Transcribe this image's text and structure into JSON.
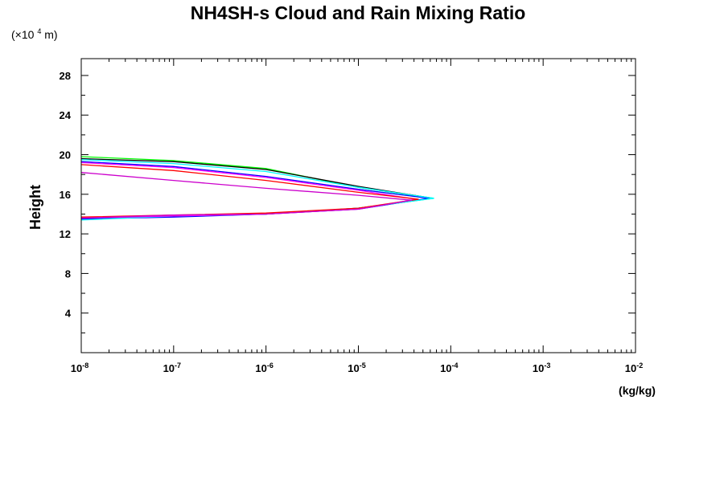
{
  "chart_data": {
    "type": "line",
    "title": "NH4SH-s Cloud and Rain Mixing Ratio",
    "ylabel": "Height",
    "yunit": "(×10",
    "yunit_exp": "4",
    "yunit_tail": " m)",
    "xlabel": "(kg/kg)",
    "x_scale": "log",
    "xlim": [
      1e-08,
      0.01
    ],
    "ylim": [
      0,
      29.7
    ],
    "x_ticks": [
      {
        "base": "10",
        "exp": "-8",
        "value": 1e-08
      },
      {
        "base": "10",
        "exp": "-7",
        "value": 1e-07
      },
      {
        "base": "10",
        "exp": "-6",
        "value": 1e-06
      },
      {
        "base": "10",
        "exp": "-5",
        "value": 1e-05
      },
      {
        "base": "10",
        "exp": "-4",
        "value": 0.0001
      },
      {
        "base": "10",
        "exp": "-3",
        "value": 0.001
      },
      {
        "base": "10",
        "exp": "-2",
        "value": 0.01
      }
    ],
    "y_ticks": [
      {
        "label": "4",
        "value": 4
      },
      {
        "label": "8",
        "value": 8
      },
      {
        "label": "12",
        "value": 12
      },
      {
        "label": "16",
        "value": 16
      },
      {
        "label": "20",
        "value": 20
      },
      {
        "label": "24",
        "value": 24
      },
      {
        "label": "28",
        "value": 28
      }
    ],
    "grid": false,
    "legend": "none",
    "series": [
      {
        "color": "#00ff00",
        "points": [
          [
            1e-08,
            19.8
          ],
          [
            1e-07,
            19.4
          ],
          [
            1e-06,
            18.6
          ],
          [
            1e-05,
            16.7
          ],
          [
            6.5e-05,
            15.6
          ],
          [
            1e-05,
            14.6
          ],
          [
            1e-06,
            14.0
          ],
          [
            1e-07,
            13.8
          ],
          [
            1e-08,
            13.6
          ]
        ]
      },
      {
        "color": "#000000",
        "points": [
          [
            1e-08,
            19.6
          ],
          [
            1e-07,
            19.3
          ],
          [
            1e-06,
            18.5
          ],
          [
            1e-05,
            16.8
          ],
          [
            6.3e-05,
            15.6
          ],
          [
            1e-05,
            14.6
          ],
          [
            1e-06,
            14.0
          ],
          [
            1e-07,
            13.8
          ],
          [
            1e-08,
            13.5
          ]
        ]
      },
      {
        "color": "#0000ff",
        "points": [
          [
            1e-08,
            19.3
          ],
          [
            1e-07,
            18.8
          ],
          [
            1e-06,
            17.8
          ],
          [
            1e-05,
            16.5
          ],
          [
            5.8e-05,
            15.6
          ],
          [
            1e-05,
            14.5
          ],
          [
            1e-06,
            14.0
          ],
          [
            1e-07,
            13.7
          ],
          [
            1e-08,
            13.5
          ]
        ]
      },
      {
        "color": "#00ffff",
        "points": [
          [
            1e-08,
            19.5
          ],
          [
            1e-07,
            19.1
          ],
          [
            1e-06,
            18.3
          ],
          [
            1e-05,
            16.7
          ],
          [
            6.6e-05,
            15.6
          ],
          [
            1e-05,
            14.6
          ],
          [
            1e-06,
            14.0
          ],
          [
            1e-07,
            13.8
          ],
          [
            1e-08,
            13.4
          ]
        ]
      },
      {
        "color": "#ff00ff",
        "points": [
          [
            1e-08,
            19.2
          ],
          [
            1e-07,
            18.7
          ],
          [
            1e-06,
            17.7
          ],
          [
            1e-05,
            16.4
          ],
          [
            4.2e-05,
            15.5
          ],
          [
            1e-05,
            14.5
          ],
          [
            1e-06,
            14.0
          ],
          [
            1e-07,
            13.8
          ],
          [
            1e-08,
            13.6
          ]
        ]
      },
      {
        "color": "#ff0000",
        "points": [
          [
            1e-08,
            19.0
          ],
          [
            1e-07,
            18.4
          ],
          [
            1e-06,
            17.4
          ],
          [
            1e-05,
            16.2
          ],
          [
            4.5e-05,
            15.5
          ],
          [
            1e-05,
            14.6
          ],
          [
            1e-06,
            14.1
          ],
          [
            1e-07,
            13.9
          ],
          [
            1e-08,
            13.7
          ]
        ]
      },
      {
        "color": "#cc00cc",
        "points": [
          [
            1e-08,
            18.2
          ],
          [
            1e-07,
            17.4
          ],
          [
            1e-06,
            16.6
          ],
          [
            1e-05,
            15.9
          ],
          [
            3.8e-05,
            15.4
          ],
          [
            1e-05,
            14.5
          ],
          [
            1e-06,
            14.0
          ],
          [
            1e-07,
            13.9
          ],
          [
            1e-08,
            13.6
          ]
        ]
      }
    ]
  }
}
